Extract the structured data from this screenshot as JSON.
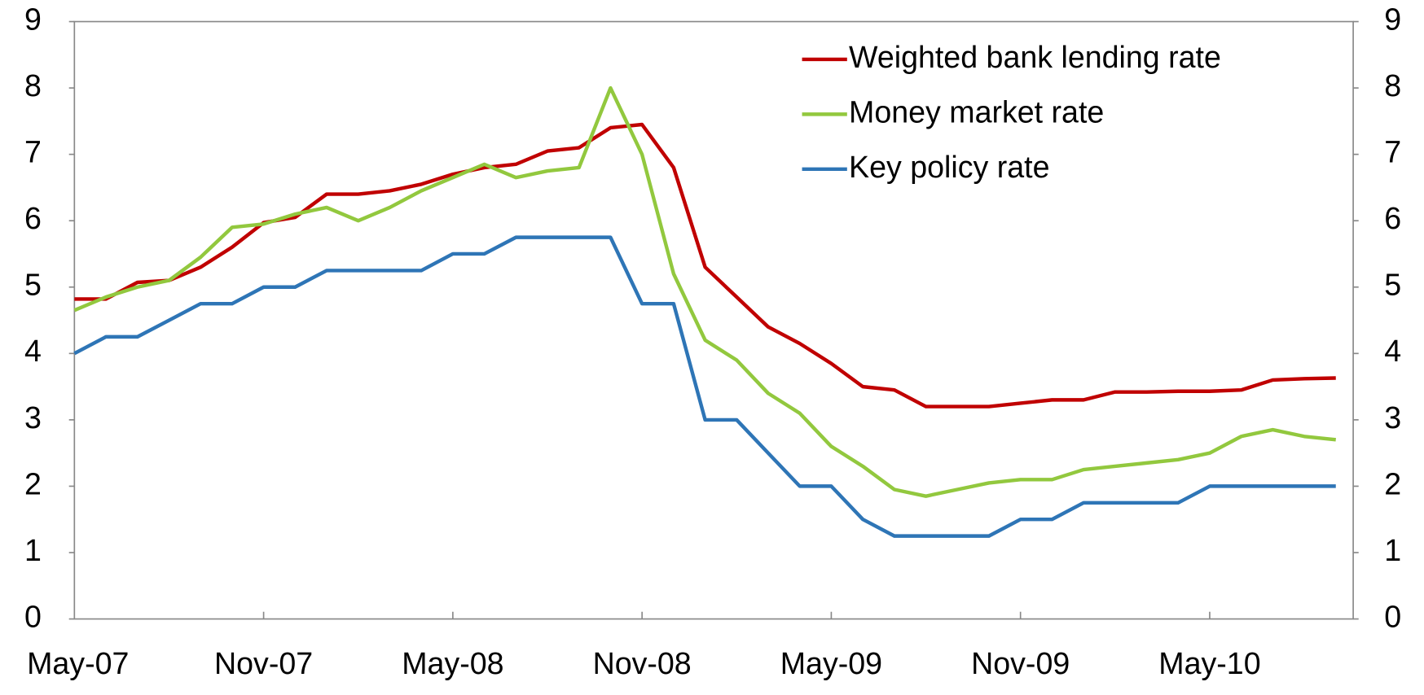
{
  "chart_data": {
    "type": "line",
    "categories": [
      "May-07",
      null,
      null,
      null,
      null,
      null,
      "Nov-07",
      null,
      null,
      null,
      null,
      null,
      "May-08",
      null,
      null,
      null,
      null,
      null,
      "Nov-08",
      null,
      null,
      null,
      null,
      null,
      "May-09",
      null,
      null,
      null,
      null,
      null,
      "Nov-09",
      null,
      null,
      null,
      null,
      null,
      "May-10",
      null,
      null,
      null,
      null
    ],
    "ylim": [
      0,
      9
    ],
    "yticks": [
      0,
      1,
      2,
      3,
      4,
      5,
      6,
      7,
      8,
      9
    ],
    "y2lim": [
      0,
      9
    ],
    "y2ticks": [
      0,
      1,
      2,
      3,
      4,
      5,
      6,
      7,
      8,
      9
    ],
    "legend": "top-right",
    "series": [
      {
        "name": "Weighted bank lending rate",
        "color": "#c00000",
        "values": [
          4.82,
          4.82,
          5.07,
          5.1,
          5.3,
          5.6,
          5.97,
          6.05,
          6.4,
          6.4,
          6.45,
          6.55,
          6.7,
          6.8,
          6.85,
          7.05,
          7.1,
          7.4,
          7.45,
          6.8,
          5.3,
          4.85,
          4.4,
          4.15,
          3.85,
          3.5,
          3.45,
          3.2,
          3.2,
          3.2,
          3.25,
          3.3,
          3.3,
          3.42,
          3.42,
          3.43,
          3.43,
          3.45,
          3.6,
          3.62,
          3.63
        ]
      },
      {
        "name": "Money market rate",
        "color": "#92c83e",
        "values": [
          4.65,
          4.85,
          5.0,
          5.1,
          5.45,
          5.9,
          5.95,
          6.1,
          6.2,
          6.0,
          6.2,
          6.45,
          6.65,
          6.85,
          6.65,
          6.75,
          6.8,
          8.0,
          7.0,
          5.2,
          4.2,
          3.9,
          3.4,
          3.1,
          2.6,
          2.3,
          1.95,
          1.85,
          1.95,
          2.05,
          2.1,
          2.1,
          2.25,
          2.3,
          2.35,
          2.4,
          2.5,
          2.75,
          2.85,
          2.75,
          2.7
        ]
      },
      {
        "name": "Key policy rate",
        "color": "#2e75b6",
        "values": [
          4.0,
          4.25,
          4.25,
          4.5,
          4.75,
          4.75,
          5.0,
          5.0,
          5.25,
          5.25,
          5.25,
          5.25,
          5.5,
          5.5,
          5.75,
          5.75,
          5.75,
          5.75,
          4.75,
          4.75,
          3.0,
          3.0,
          2.5,
          2.0,
          2.0,
          1.5,
          1.25,
          1.25,
          1.25,
          1.25,
          1.5,
          1.5,
          1.75,
          1.75,
          1.75,
          1.75,
          2.0,
          2.0,
          2.0,
          2.0,
          2.0
        ]
      }
    ]
  }
}
